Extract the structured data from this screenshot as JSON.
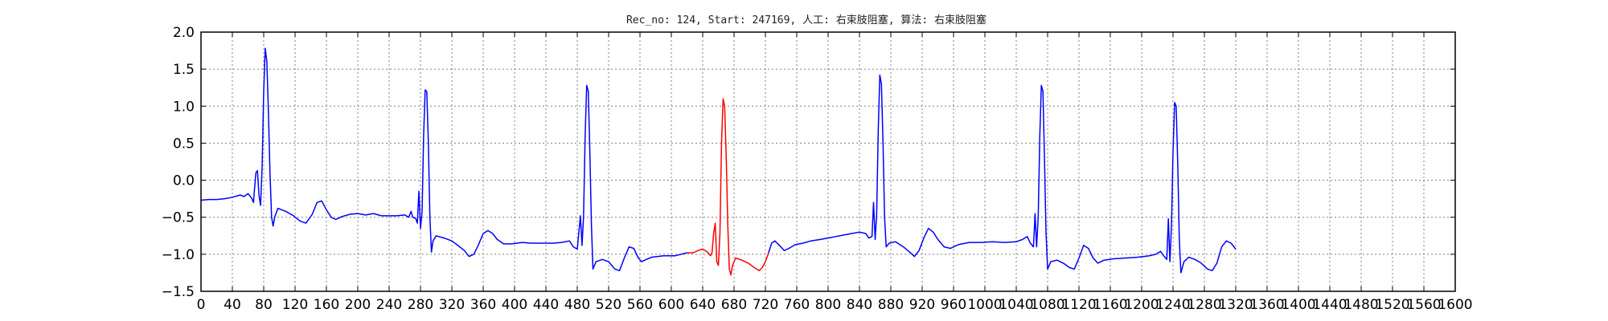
{
  "chart_data": {
    "type": "line",
    "title": "Rec_no: 124, Start: 247169, 人工: 右束肢阻塞, 算法: 右束肢阻塞",
    "xlabel": "",
    "ylabel": "",
    "xlim": [
      0,
      1600
    ],
    "ylim": [
      -1.5,
      2.0
    ],
    "grid": true,
    "y_ticks": [
      "2.0",
      "1.5",
      "1.0",
      "0.5",
      "0.0",
      "−0.5",
      "−1.0",
      "−1.5"
    ],
    "y_tick_values": [
      2.0,
      1.5,
      1.0,
      0.5,
      0.0,
      -0.5,
      -1.0,
      -1.5
    ],
    "x_ticks": [
      "0",
      "40",
      "80",
      "120",
      "160",
      "200",
      "240",
      "280",
      "320",
      "360",
      "400",
      "440",
      "480",
      "520",
      "560",
      "600",
      "640",
      "680",
      "720",
      "760",
      "800",
      "840",
      "880",
      "920",
      "960",
      "1000",
      "1040",
      "1080",
      "1120",
      "1160",
      "1200",
      "1240",
      "1280",
      "1320",
      "1360",
      "1400",
      "1440",
      "1480",
      "1520",
      "1560",
      "1600"
    ],
    "x_tick_values": [
      0,
      40,
      80,
      120,
      160,
      200,
      240,
      280,
      320,
      360,
      400,
      440,
      480,
      520,
      560,
      600,
      640,
      680,
      720,
      760,
      800,
      840,
      880,
      920,
      960,
      1000,
      1040,
      1080,
      1120,
      1160,
      1200,
      1240,
      1280,
      1320,
      1360,
      1400,
      1440,
      1480,
      1520,
      1560,
      1600
    ],
    "colors": {
      "normal": "#0000ff",
      "highlight": "#ff0000",
      "grid": "#808080"
    },
    "series": [
      {
        "color": "#0000ff",
        "points": [
          [
            0,
            -0.27
          ],
          [
            10,
            -0.26
          ],
          [
            20,
            -0.26
          ],
          [
            30,
            -0.25
          ],
          [
            40,
            -0.23
          ],
          [
            50,
            -0.2
          ],
          [
            55,
            -0.22
          ],
          [
            60,
            -0.18
          ],
          [
            65,
            -0.25
          ],
          [
            67,
            -0.3
          ],
          [
            68,
            -0.15
          ],
          [
            70,
            0.1
          ],
          [
            72,
            0.13
          ],
          [
            74,
            -0.2
          ],
          [
            76,
            -0.34
          ],
          [
            78,
            0.2
          ],
          [
            80,
            1.2
          ],
          [
            82,
            1.78
          ],
          [
            84,
            1.6
          ],
          [
            86,
            0.9
          ],
          [
            88,
            0.1
          ],
          [
            90,
            -0.5
          ],
          [
            92,
            -0.62
          ],
          [
            94,
            -0.5
          ],
          [
            98,
            -0.38
          ],
          [
            108,
            -0.42
          ],
          [
            118,
            -0.48
          ],
          [
            126,
            -0.55
          ],
          [
            134,
            -0.58
          ],
          [
            142,
            -0.46
          ],
          [
            148,
            -0.3
          ],
          [
            154,
            -0.28
          ],
          [
            160,
            -0.4
          ],
          [
            166,
            -0.5
          ],
          [
            172,
            -0.53
          ],
          [
            180,
            -0.49
          ],
          [
            190,
            -0.46
          ],
          [
            200,
            -0.45
          ],
          [
            210,
            -0.47
          ],
          [
            220,
            -0.45
          ],
          [
            230,
            -0.48
          ],
          [
            240,
            -0.48
          ],
          [
            250,
            -0.48
          ],
          [
            260,
            -0.47
          ],
          [
            265,
            -0.5
          ],
          [
            268,
            -0.42
          ],
          [
            270,
            -0.5
          ],
          [
            274,
            -0.52
          ],
          [
            276,
            -0.58
          ],
          [
            278,
            -0.15
          ],
          [
            280,
            -0.65
          ],
          [
            282,
            -0.42
          ],
          [
            284,
            0.6
          ],
          [
            286,
            1.22
          ],
          [
            288,
            1.2
          ],
          [
            290,
            0.5
          ],
          [
            292,
            -0.5
          ],
          [
            294,
            -0.97
          ],
          [
            296,
            -0.82
          ],
          [
            300,
            -0.75
          ],
          [
            310,
            -0.78
          ],
          [
            320,
            -0.82
          ],
          [
            330,
            -0.9
          ],
          [
            336,
            -0.95
          ],
          [
            342,
            -1.03
          ],
          [
            348,
            -1.0
          ],
          [
            354,
            -0.87
          ],
          [
            360,
            -0.72
          ],
          [
            366,
            -0.68
          ],
          [
            372,
            -0.72
          ],
          [
            378,
            -0.8
          ],
          [
            386,
            -0.86
          ],
          [
            396,
            -0.86
          ],
          [
            410,
            -0.84
          ],
          [
            420,
            -0.85
          ],
          [
            430,
            -0.85
          ],
          [
            440,
            -0.85
          ],
          [
            450,
            -0.85
          ],
          [
            460,
            -0.84
          ],
          [
            470,
            -0.82
          ],
          [
            475,
            -0.9
          ],
          [
            480,
            -0.93
          ],
          [
            484,
            -0.48
          ],
          [
            486,
            -0.88
          ],
          [
            488,
            -0.5
          ],
          [
            490,
            0.6
          ],
          [
            492,
            1.28
          ],
          [
            494,
            1.2
          ],
          [
            496,
            0.4
          ],
          [
            498,
            -0.6
          ],
          [
            500,
            -1.2
          ],
          [
            504,
            -1.1
          ],
          [
            512,
            -1.07
          ],
          [
            520,
            -1.1
          ],
          [
            528,
            -1.2
          ],
          [
            534,
            -1.22
          ],
          [
            540,
            -1.05
          ],
          [
            546,
            -0.9
          ],
          [
            552,
            -0.92
          ],
          [
            558,
            -1.05
          ],
          [
            562,
            -1.1
          ],
          [
            568,
            -1.07
          ],
          [
            575,
            -1.04
          ],
          [
            590,
            -1.02
          ],
          [
            605,
            -1.02
          ],
          [
            620,
            -0.98
          ]
        ]
      },
      {
        "color": "#ff0000",
        "points": [
          [
            620,
            -0.98
          ],
          [
            628,
            -0.98
          ],
          [
            634,
            -0.95
          ],
          [
            640,
            -0.93
          ],
          [
            646,
            -0.97
          ],
          [
            650,
            -1.02
          ],
          [
            652,
            -0.97
          ],
          [
            654,
            -0.72
          ],
          [
            656,
            -0.58
          ],
          [
            658,
            -1.1
          ],
          [
            660,
            -1.15
          ],
          [
            662,
            -0.7
          ],
          [
            664,
            0.5
          ],
          [
            666,
            1.1
          ],
          [
            668,
            1.0
          ],
          [
            670,
            0.3
          ],
          [
            672,
            -0.6
          ],
          [
            674,
            -1.2
          ],
          [
            676,
            -1.28
          ],
          [
            678,
            -1.15
          ],
          [
            682,
            -1.05
          ],
          [
            690,
            -1.08
          ],
          [
            698,
            -1.12
          ],
          [
            706,
            -1.18
          ],
          [
            712,
            -1.22
          ],
          [
            716,
            -1.18
          ],
          [
            720,
            -1.1
          ],
          [
            724,
            -0.98
          ]
        ]
      },
      {
        "color": "#0000ff",
        "points": [
          [
            724,
            -0.98
          ],
          [
            728,
            -0.85
          ],
          [
            732,
            -0.82
          ],
          [
            738,
            -0.88
          ],
          [
            744,
            -0.95
          ],
          [
            750,
            -0.92
          ],
          [
            758,
            -0.87
          ],
          [
            768,
            -0.85
          ],
          [
            778,
            -0.82
          ],
          [
            790,
            -0.8
          ],
          [
            800,
            -0.78
          ],
          [
            810,
            -0.76
          ],
          [
            820,
            -0.74
          ],
          [
            830,
            -0.72
          ],
          [
            840,
            -0.7
          ],
          [
            848,
            -0.72
          ],
          [
            852,
            -0.78
          ],
          [
            856,
            -0.76
          ],
          [
            858,
            -0.3
          ],
          [
            860,
            -0.8
          ],
          [
            862,
            -0.45
          ],
          [
            864,
            0.7
          ],
          [
            866,
            1.42
          ],
          [
            868,
            1.3
          ],
          [
            870,
            0.5
          ],
          [
            872,
            -0.5
          ],
          [
            874,
            -0.9
          ],
          [
            878,
            -0.85
          ],
          [
            886,
            -0.83
          ],
          [
            896,
            -0.9
          ],
          [
            904,
            -0.97
          ],
          [
            910,
            -1.03
          ],
          [
            916,
            -0.95
          ],
          [
            922,
            -0.78
          ],
          [
            928,
            -0.65
          ],
          [
            934,
            -0.7
          ],
          [
            940,
            -0.8
          ],
          [
            948,
            -0.9
          ],
          [
            956,
            -0.92
          ],
          [
            966,
            -0.87
          ],
          [
            980,
            -0.84
          ],
          [
            995,
            -0.84
          ],
          [
            1010,
            -0.83
          ],
          [
            1025,
            -0.84
          ],
          [
            1040,
            -0.83
          ],
          [
            1048,
            -0.8
          ],
          [
            1054,
            -0.76
          ],
          [
            1058,
            -0.85
          ],
          [
            1062,
            -0.9
          ],
          [
            1064,
            -0.45
          ],
          [
            1066,
            -0.9
          ],
          [
            1068,
            -0.5
          ],
          [
            1070,
            0.6
          ],
          [
            1072,
            1.28
          ],
          [
            1074,
            1.2
          ],
          [
            1076,
            0.3
          ],
          [
            1078,
            -0.7
          ],
          [
            1080,
            -1.2
          ],
          [
            1084,
            -1.1
          ],
          [
            1092,
            -1.08
          ],
          [
            1100,
            -1.12
          ],
          [
            1108,
            -1.18
          ],
          [
            1114,
            -1.2
          ],
          [
            1120,
            -1.05
          ],
          [
            1126,
            -0.88
          ],
          [
            1132,
            -0.92
          ],
          [
            1138,
            -1.05
          ],
          [
            1144,
            -1.12
          ],
          [
            1152,
            -1.08
          ],
          [
            1165,
            -1.06
          ],
          [
            1180,
            -1.05
          ],
          [
            1195,
            -1.04
          ],
          [
            1210,
            -1.02
          ],
          [
            1218,
            -1.0
          ],
          [
            1224,
            -0.96
          ],
          [
            1228,
            -1.02
          ],
          [
            1232,
            -1.07
          ],
          [
            1234,
            -0.52
          ],
          [
            1236,
            -1.1
          ],
          [
            1238,
            -0.6
          ],
          [
            1240,
            0.4
          ],
          [
            1242,
            1.05
          ],
          [
            1244,
            1.0
          ],
          [
            1246,
            0.2
          ],
          [
            1248,
            -0.8
          ],
          [
            1250,
            -1.25
          ],
          [
            1254,
            -1.1
          ],
          [
            1260,
            -1.04
          ],
          [
            1268,
            -1.07
          ],
          [
            1276,
            -1.12
          ],
          [
            1284,
            -1.2
          ],
          [
            1290,
            -1.22
          ],
          [
            1296,
            -1.12
          ],
          [
            1302,
            -0.9
          ],
          [
            1308,
            -0.82
          ],
          [
            1314,
            -0.85
          ],
          [
            1320,
            -0.93
          ]
        ]
      }
    ]
  }
}
